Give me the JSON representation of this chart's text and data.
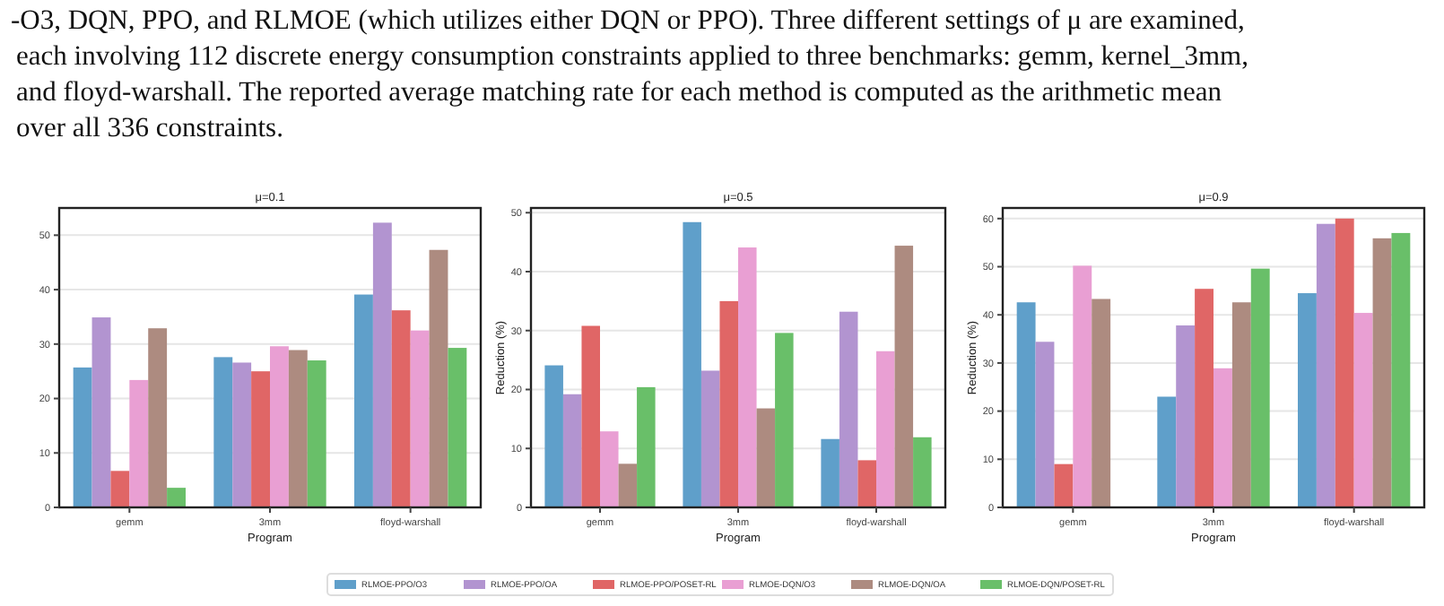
{
  "chart_data": [
    {
      "type": "bar",
      "title": "μ=0.1",
      "xlabel": "Program",
      "categories": [
        "gemm",
        "3mm",
        "floyd-warshall"
      ],
      "ylim": [
        0,
        55
      ],
      "yticks": [
        0,
        10,
        20,
        30,
        40,
        50
      ],
      "grid": "y",
      "legend": "bottom",
      "annotations": [
        "-O3, DQN, PPO, and RLMOE (which utilizes either DQN or PPO). Three different settings of μ are examined,",
        "each involving 112 discrete energy consumption constraints applied to three benchmarks: gemm, kernel_3mm,",
        "and floyd-warshall. The reported average matching rate for each method is computed as the arithmetic mean",
        "over all 336 constraints."
      ],
      "series": [
        {
          "name": "RLMOE-PPO/O3",
          "color": "#5f9fca",
          "values": [
            25.7,
            27.6,
            39.1
          ]
        },
        {
          "name": "RLMOE-PPO/OA",
          "color": "#b294d0",
          "values": [
            34.9,
            26.6,
            52.3
          ]
        },
        {
          "name": "RLMOE-PPO/POSET-RL",
          "color": "#e06666",
          "values": [
            6.7,
            25.0,
            36.2
          ]
        },
        {
          "name": "RLMOE-DQN/O3",
          "color": "#e99fd3",
          "values": [
            23.4,
            29.6,
            32.5
          ]
        },
        {
          "name": "RLMOE-DQN/OA",
          "color": "#ad8b80",
          "values": [
            32.9,
            28.9,
            47.3
          ]
        },
        {
          "name": "RLMOE-DQN/POSET-RL",
          "color": "#69bf69",
          "values": [
            3.6,
            27.0,
            29.3
          ]
        }
      ]
    },
    {
      "type": "bar",
      "title": "μ=0.5",
      "xlabel": "Program",
      "ylabel": "Reduction (%)",
      "categories": [
        "gemm",
        "3mm",
        "floyd-warshall"
      ],
      "ylim": [
        0,
        50.8
      ],
      "yticks": [
        0,
        10,
        20,
        30,
        40,
        50
      ],
      "grid": "y",
      "series": [
        {
          "color": "#5f9fca",
          "values": [
            24.1,
            48.4,
            11.6
          ]
        },
        {
          "color": "#b294d0",
          "values": [
            19.2,
            23.2,
            33.2
          ]
        },
        {
          "color": "#e06666",
          "values": [
            30.8,
            35.0,
            8.0
          ]
        },
        {
          "color": "#e99fd3",
          "values": [
            12.9,
            44.1,
            26.5
          ]
        },
        {
          "color": "#ad8b80",
          "values": [
            7.4,
            16.8,
            44.4
          ]
        },
        {
          "color": "#69bf69",
          "values": [
            20.4,
            29.6,
            11.9
          ]
        }
      ]
    },
    {
      "type": "bar",
      "title": "μ=0.9",
      "xlabel": "Program",
      "ylabel": "Reduction (%)",
      "categories": [
        "gemm",
        "3mm",
        "floyd-warshall"
      ],
      "ylim": [
        0,
        62.2
      ],
      "yticks": [
        0,
        10,
        20,
        30,
        40,
        50,
        60
      ],
      "grid": "y",
      "series": [
        {
          "color": "#5f9fca",
          "values": [
            42.6,
            23.0,
            44.5
          ]
        },
        {
          "color": "#b294d0",
          "values": [
            34.4,
            37.8,
            58.9
          ]
        },
        {
          "color": "#e06666",
          "values": [
            9.0,
            45.4,
            60.0
          ]
        },
        {
          "color": "#e99fd3",
          "values": [
            50.2,
            28.9,
            40.4
          ]
        },
        {
          "color": "#ad8b80",
          "values": [
            43.3,
            42.6,
            55.9
          ]
        },
        {
          "color": "#69bf69",
          "values": [
            null,
            49.6,
            57.0
          ]
        }
      ]
    }
  ]
}
